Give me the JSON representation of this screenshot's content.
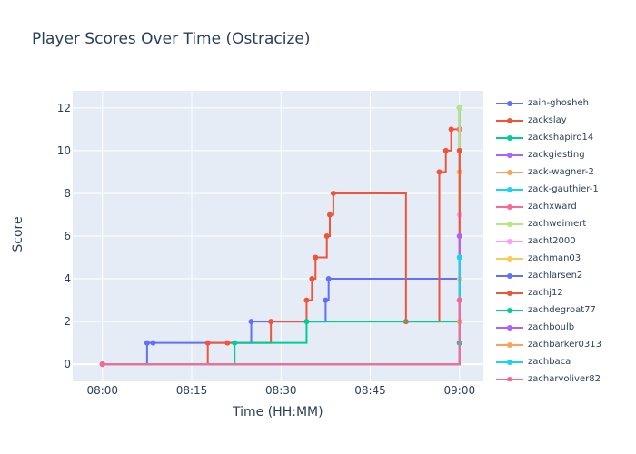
{
  "chart_data": {
    "type": "line",
    "line_shape": "step",
    "title": "Player Scores Over Time (Ostracize)",
    "xlabel": "Time (HH:MM)",
    "ylabel": "Score",
    "x_range": [
      "07:55",
      "09:04"
    ],
    "ylim": [
      -0.8,
      12.8
    ],
    "x_ticks": [
      "08:00",
      "08:15",
      "08:30",
      "08:45",
      "09:00"
    ],
    "y_ticks": [
      0,
      2,
      4,
      6,
      8,
      10,
      12
    ],
    "grid": true,
    "legend_position": "right",
    "series": [
      {
        "name": "zain-ghosheh",
        "color": "#636efa",
        "x": [
          "08:00",
          "08:07.5",
          "08:08.5",
          "08:25",
          "08:37.5",
          "08:38",
          "09:00"
        ],
        "y": [
          0,
          1,
          1,
          2,
          3,
          4,
          12
        ]
      },
      {
        "name": "zackslay",
        "color": "#ef553b",
        "x": [
          "08:00",
          "08:17.7",
          "08:21",
          "08:28.3",
          "08:34.3",
          "08:35.2",
          "08:35.8",
          "08:37.7",
          "08:38.2",
          "08:38.8",
          "08:51",
          "08:56.6",
          "08:57.7",
          "08:58.6",
          "09:00",
          "09:00",
          "09:00"
        ],
        "y": [
          0,
          1,
          1,
          2,
          3,
          4,
          5,
          6,
          7,
          8,
          2,
          9,
          10,
          11,
          10,
          11,
          12
        ]
      },
      {
        "name": "zackshapiro14",
        "color": "#00cc96",
        "x": [
          "08:00",
          "08:22.2",
          "08:34.3",
          "09:00",
          "09:00"
        ],
        "y": [
          0,
          1,
          2,
          1,
          12
        ]
      },
      {
        "name": "zackgiesting",
        "color": "#ab63fa",
        "x": [
          "08:00",
          "09:00"
        ],
        "y": [
          0,
          6
        ]
      },
      {
        "name": "zack-wagner-2",
        "color": "#ffa15a",
        "x": [
          "08:00",
          "09:00"
        ],
        "y": [
          0,
          9
        ]
      },
      {
        "name": "zack-gauthier-1",
        "color": "#19d3f3",
        "x": [
          "08:00",
          "09:00"
        ],
        "y": [
          0,
          5
        ]
      },
      {
        "name": "zachxward",
        "color": "#ff6692",
        "x": [
          "08:00",
          "09:00"
        ],
        "y": [
          0,
          11
        ]
      },
      {
        "name": "zachweimert",
        "color": "#b6e880",
        "x": [
          "08:00",
          "09:00"
        ],
        "y": [
          0,
          12
        ]
      },
      {
        "name": "zacht2000",
        "color": "#ff97ff",
        "x": [
          "08:00",
          "09:00"
        ],
        "y": [
          0,
          7
        ]
      },
      {
        "name": "zachman03",
        "color": "#fecb52",
        "x": [
          "08:00",
          "09:00"
        ],
        "y": [
          0,
          4
        ]
      },
      {
        "name": "zachlarsen2",
        "color": "#636efa",
        "x": [
          "08:00",
          "09:00"
        ],
        "y": [
          0,
          3
        ]
      },
      {
        "name": "zachj12",
        "color": "#ef553b",
        "x": [
          "08:00",
          "09:00"
        ],
        "y": [
          0,
          10
        ]
      },
      {
        "name": "zachdegroat77",
        "color": "#00cc96",
        "x": [
          "08:00",
          "09:00"
        ],
        "y": [
          0,
          1
        ]
      },
      {
        "name": "zachboulb",
        "color": "#ab63fa",
        "x": [
          "08:00",
          "09:00"
        ],
        "y": [
          0,
          6
        ]
      },
      {
        "name": "zachbarker0313",
        "color": "#ffa15a",
        "x": [
          "08:00",
          "09:00"
        ],
        "y": [
          0,
          2
        ]
      },
      {
        "name": "zachbaca",
        "color": "#19d3f3",
        "x": [
          "08:00",
          "09:00"
        ],
        "y": [
          0,
          5
        ]
      },
      {
        "name": "zacharyoliver82",
        "color": "#ff6692",
        "x": [
          "08:00",
          "09:00"
        ],
        "y": [
          0,
          3
        ]
      }
    ]
  }
}
